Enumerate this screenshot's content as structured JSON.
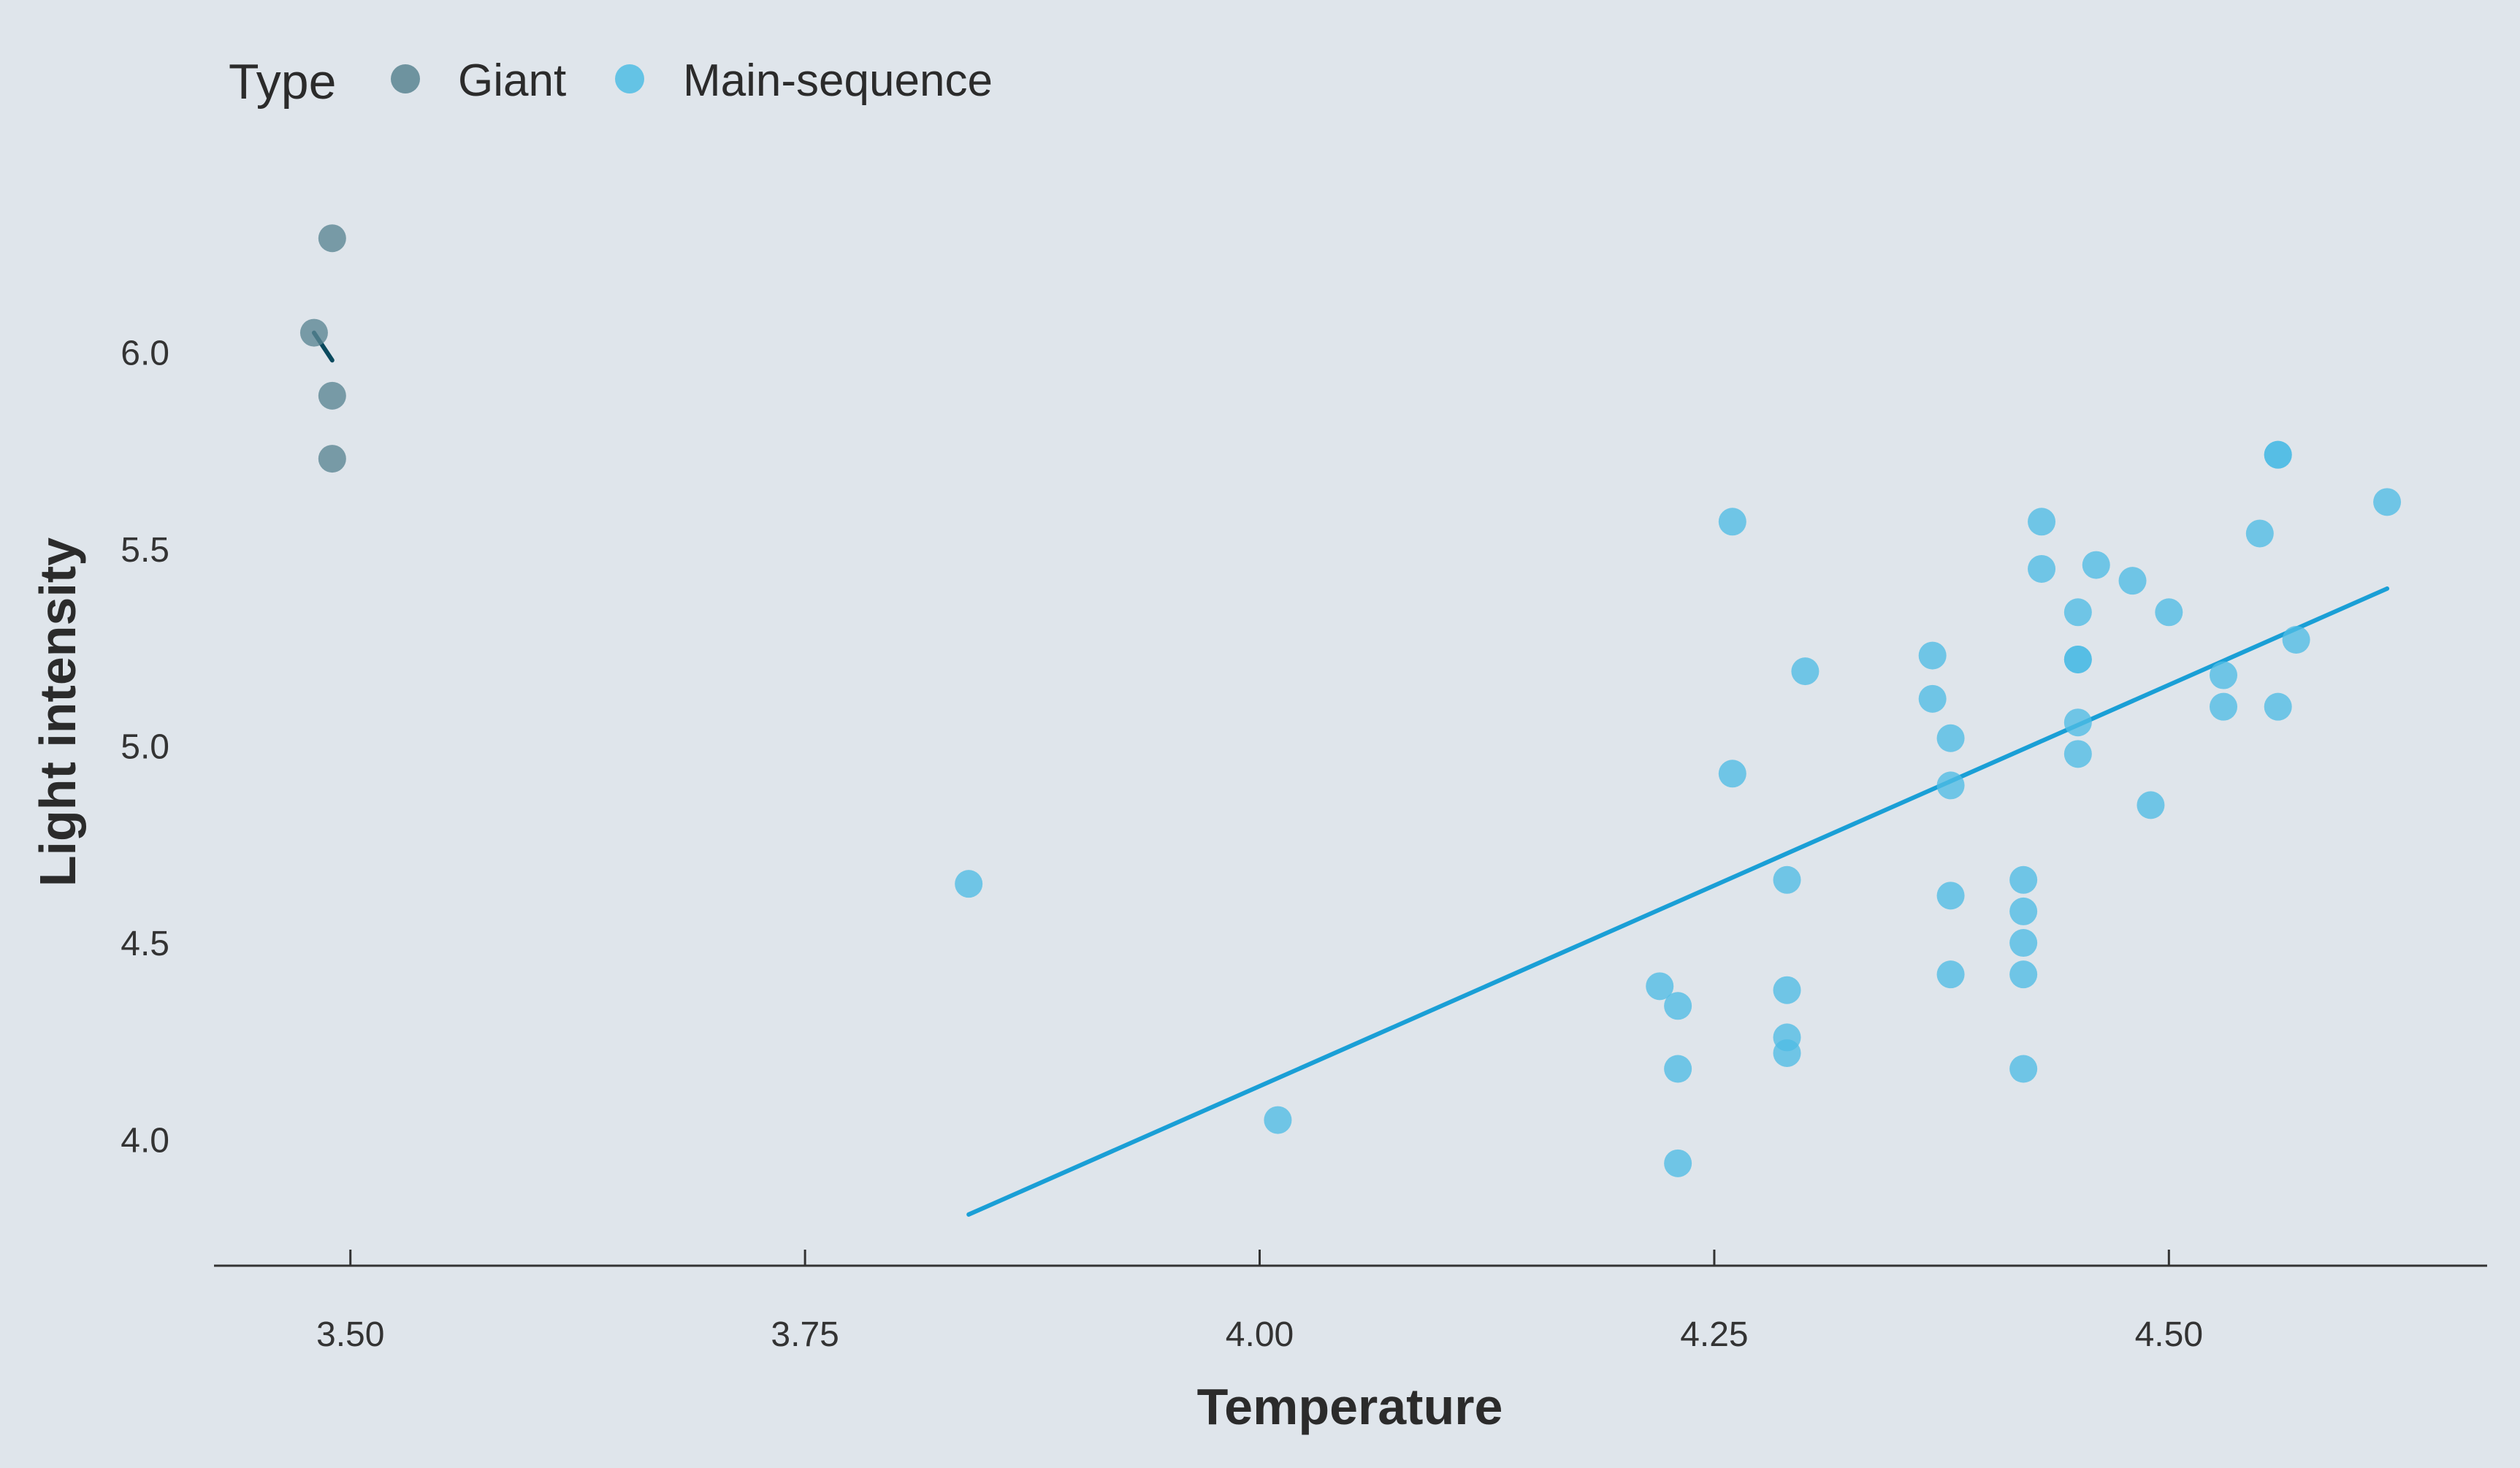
{
  "chart_data": {
    "type": "scatter",
    "title": "",
    "xlabel": "Temperature",
    "ylabel": "Light intensity",
    "xlim": [
      3.425,
      4.675
    ],
    "ylim": [
      3.68,
      6.45
    ],
    "x_ticks": [
      3.5,
      3.75,
      4.0,
      4.25,
      4.5
    ],
    "x_tick_labels": [
      "3.50",
      "3.75",
      "4.00",
      "4.25",
      "4.50"
    ],
    "y_ticks": [
      4.0,
      4.5,
      5.0,
      5.5,
      6.0
    ],
    "y_tick_labels": [
      "4.0",
      "4.5",
      "5.0",
      "5.5",
      "6.0"
    ],
    "grid": false,
    "legend": {
      "title": "Type",
      "placement": "top-left",
      "entries": [
        "Giant",
        "Main-sequence"
      ]
    },
    "colors": {
      "background": "#dfe5eb",
      "giant": "#5a8592",
      "giant_line": "#0b4a5e",
      "main_sequence": "#4fbde4",
      "main_sequence_line": "#1a9fd6",
      "axis": "#333333"
    },
    "series": [
      {
        "name": "Giant",
        "points": [
          [
            3.48,
            6.05
          ],
          [
            3.49,
            6.29
          ],
          [
            3.49,
            5.89
          ],
          [
            3.49,
            5.73
          ]
        ],
        "fit_line": [
          [
            3.48,
            6.05
          ],
          [
            3.49,
            5.98
          ]
        ]
      },
      {
        "name": "Main-sequence",
        "points": [
          [
            3.84,
            4.65
          ],
          [
            4.01,
            4.05
          ],
          [
            4.22,
            4.39
          ],
          [
            4.23,
            4.34
          ],
          [
            4.23,
            4.18
          ],
          [
            4.23,
            3.94
          ],
          [
            4.26,
            5.57
          ],
          [
            4.26,
            4.93
          ],
          [
            4.29,
            4.66
          ],
          [
            4.29,
            4.38
          ],
          [
            4.29,
            4.26
          ],
          [
            4.29,
            4.22
          ],
          [
            4.3,
            5.19
          ],
          [
            4.37,
            5.23
          ],
          [
            4.37,
            5.12
          ],
          [
            4.38,
            5.02
          ],
          [
            4.38,
            4.9
          ],
          [
            4.38,
            4.62
          ],
          [
            4.38,
            4.42
          ],
          [
            4.42,
            4.66
          ],
          [
            4.42,
            4.58
          ],
          [
            4.42,
            4.5
          ],
          [
            4.42,
            4.42
          ],
          [
            4.42,
            4.18
          ],
          [
            4.43,
            5.57
          ],
          [
            4.43,
            5.45
          ],
          [
            4.45,
            5.34
          ],
          [
            4.45,
            5.22
          ],
          [
            4.45,
            5.22
          ],
          [
            4.45,
            5.06
          ],
          [
            4.45,
            4.98
          ],
          [
            4.46,
            5.46
          ],
          [
            4.48,
            5.42
          ],
          [
            4.49,
            4.85
          ],
          [
            4.5,
            5.34
          ],
          [
            4.53,
            5.18
          ],
          [
            4.53,
            5.1
          ],
          [
            4.55,
            5.54
          ],
          [
            4.56,
            5.74
          ],
          [
            4.56,
            5.74
          ],
          [
            4.56,
            5.1
          ],
          [
            4.57,
            5.27
          ],
          [
            4.62,
            5.62
          ]
        ],
        "fit_line": [
          [
            3.84,
            3.81
          ],
          [
            4.62,
            5.4
          ]
        ]
      }
    ]
  }
}
